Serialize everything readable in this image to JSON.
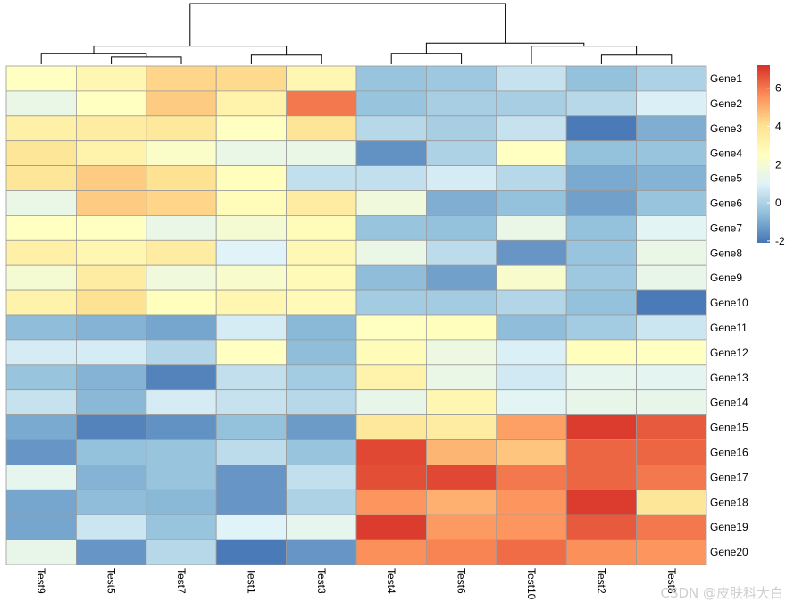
{
  "chart_data": {
    "type": "heatmap",
    "columns": [
      "Test9",
      "Test5",
      "Test7",
      "Test1",
      "Test3",
      "Test4",
      "Test6",
      "Test10",
      "Test2",
      "Test8"
    ],
    "rows": [
      "Gene1",
      "Gene2",
      "Gene3",
      "Gene4",
      "Gene5",
      "Gene6",
      "Gene7",
      "Gene8",
      "Gene9",
      "Gene10",
      "Gene11",
      "Gene12",
      "Gene13",
      "Gene14",
      "Gene15",
      "Gene16",
      "Gene17",
      "Gene18",
      "Gene19",
      "Gene20"
    ],
    "values": [
      [
        2.5,
        3.0,
        4.3,
        4.2,
        3.0,
        -0.4,
        -0.3,
        0.5,
        -0.5,
        0.0
      ],
      [
        1.5,
        2.5,
        4.5,
        3.2,
        6.0,
        -0.4,
        -0.1,
        -0.1,
        0.2,
        0.9
      ],
      [
        3.3,
        3.5,
        3.7,
        2.5,
        3.9,
        0.2,
        -0.1,
        0.5,
        -2.0,
        -0.9
      ],
      [
        3.8,
        3.2,
        2.3,
        1.5,
        1.5,
        -1.5,
        0.0,
        2.5,
        -0.5,
        -0.4
      ],
      [
        3.8,
        4.5,
        4.0,
        2.6,
        0.4,
        0.4,
        0.8,
        0.2,
        -1.0,
        -0.8
      ],
      [
        1.5,
        4.5,
        4.3,
        2.7,
        3.5,
        1.8,
        -0.9,
        -0.5,
        -1.2,
        -0.4
      ],
      [
        2.5,
        2.5,
        1.5,
        2.0,
        2.7,
        -0.4,
        -0.5,
        1.5,
        -0.5,
        1.1
      ],
      [
        3.3,
        3.0,
        3.5,
        1.0,
        2.9,
        1.5,
        0.3,
        -1.4,
        -0.4,
        1.5
      ],
      [
        2.0,
        3.5,
        1.8,
        2.2,
        2.8,
        -0.6,
        -1.2,
        2.2,
        -0.3,
        1.4
      ],
      [
        3.2,
        4.0,
        2.6,
        3.0,
        2.8,
        -0.2,
        -0.2,
        0.1,
        -0.5,
        -2.0
      ],
      [
        -0.6,
        -0.8,
        -1.1,
        0.8,
        -0.7,
        2.5,
        2.6,
        -0.6,
        -0.2,
        0.6
      ],
      [
        0.8,
        0.8,
        0.1,
        2.5,
        -0.6,
        2.7,
        1.6,
        0.9,
        2.6,
        2.5
      ],
      [
        -0.4,
        -0.8,
        -1.8,
        0.4,
        -0.2,
        3.2,
        1.5,
        0.7,
        1.3,
        1.2
      ],
      [
        0.5,
        -0.7,
        0.8,
        0.5,
        0.2,
        1.4,
        3.0,
        1.1,
        1.4,
        1.4
      ],
      [
        -1.0,
        -1.8,
        -1.5,
        -0.5,
        -1.3,
        3.7,
        3.5,
        5.3,
        7.0,
        6.5
      ],
      [
        -1.4,
        -0.5,
        -0.4,
        0.3,
        -0.4,
        6.8,
        4.9,
        4.6,
        6.3,
        6.3
      ],
      [
        1.3,
        -0.8,
        -0.4,
        -1.4,
        0.4,
        6.7,
        6.8,
        6.0,
        6.3,
        6.0
      ],
      [
        -1.1,
        -0.6,
        -0.7,
        -1.4,
        0.0,
        5.5,
        5.0,
        5.5,
        7.0,
        3.8
      ],
      [
        -1.1,
        0.6,
        -0.4,
        1.0,
        1.3,
        7.0,
        5.4,
        5.5,
        6.5,
        6.0
      ],
      [
        1.4,
        -1.4,
        0.2,
        -2.0,
        -1.4,
        5.6,
        5.8,
        6.2,
        5.6,
        5.5
      ]
    ],
    "legend": {
      "ticks": [
        6,
        4,
        2,
        0,
        -2
      ],
      "min": -2.1,
      "max": 7.2,
      "colors": [
        "#4575B4",
        "#91BFDB",
        "#E0F3F8",
        "#FFFFBF",
        "#FEE090",
        "#FC8D59",
        "#D73027"
      ]
    },
    "dendrogram_column": {
      "merges": [
        [
          1,
          2
        ],
        [
          3,
          4
        ],
        [
          0,
          "a"
        ],
        [
          "c",
          "b"
        ],
        [
          8,
          9
        ],
        [
          7,
          "e"
        ],
        [
          5,
          6
        ],
        [
          "g",
          "f"
        ],
        [
          "d",
          "h"
        ]
      ],
      "heights": [
        0.12,
        0.15,
        0.18,
        0.3,
        0.15,
        0.3,
        0.18,
        0.35,
        1.0
      ]
    }
  },
  "watermark": "CSDN @皮肤科大白"
}
